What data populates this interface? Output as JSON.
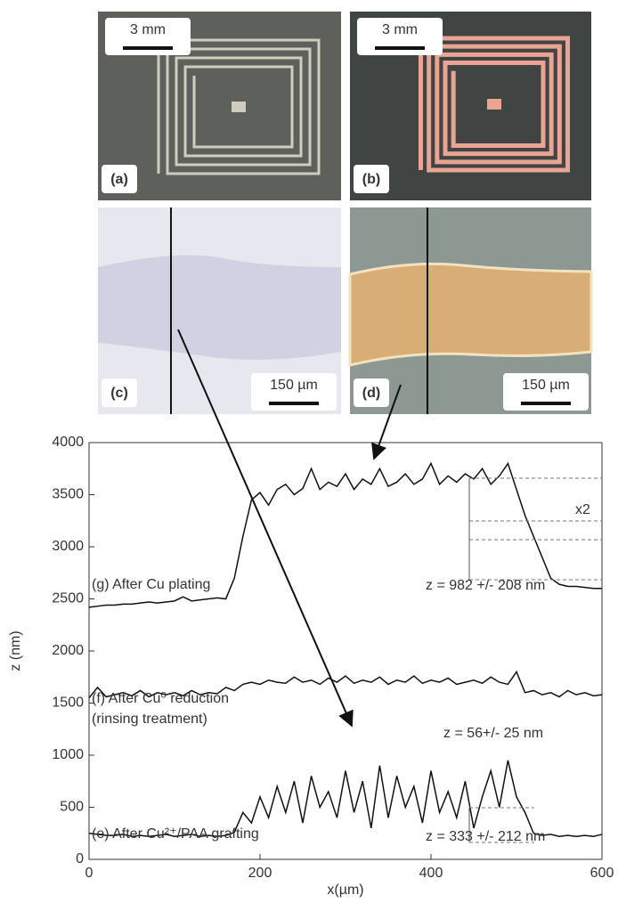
{
  "panels": [
    {
      "label": "(a)",
      "scale": "3 mm"
    },
    {
      "label": "(b)",
      "scale": "3 mm"
    },
    {
      "label": "(c)",
      "scale": "150 µm"
    },
    {
      "label": "(d)",
      "scale": "150 µm"
    }
  ],
  "chart_data": {
    "type": "line",
    "x_label": "x(µm)",
    "y_label": "z (nm)",
    "x": [
      0,
      10,
      20,
      30,
      40,
      50,
      60,
      70,
      80,
      90,
      100,
      110,
      120,
      130,
      140,
      150,
      160,
      170,
      180,
      190,
      200,
      210,
      220,
      230,
      240,
      250,
      260,
      270,
      280,
      290,
      300,
      310,
      320,
      330,
      340,
      350,
      360,
      370,
      380,
      390,
      400,
      410,
      420,
      430,
      440,
      450,
      460,
      470,
      480,
      490,
      500,
      510,
      520,
      530,
      540,
      550,
      560,
      570,
      580,
      590,
      600
    ],
    "series": [
      {
        "color": "#111111",
        "values": [
          2420,
          2430,
          2440,
          2440,
          2450,
          2450,
          2460,
          2470,
          2460,
          2470,
          2480,
          2520,
          2480,
          2490,
          2500,
          2510,
          2500,
          2700,
          3100,
          3450,
          3520,
          3400,
          3550,
          3600,
          3500,
          3560,
          3750,
          3550,
          3620,
          3580,
          3700,
          3550,
          3650,
          3600,
          3750,
          3580,
          3620,
          3700,
          3600,
          3650,
          3800,
          3600,
          3680,
          3620,
          3700,
          3650,
          3750,
          3600,
          3680,
          3800,
          3550,
          3300,
          3100,
          2900,
          2700,
          2640,
          2620,
          2620,
          2610,
          2600,
          2600
        ]
      },
      {
        "color": "#111111",
        "values": [
          1550,
          1650,
          1560,
          1580,
          1600,
          1570,
          1620,
          1560,
          1600,
          1580,
          1600,
          1570,
          1620,
          1580,
          1600,
          1590,
          1650,
          1620,
          1680,
          1700,
          1680,
          1720,
          1700,
          1690,
          1750,
          1700,
          1720,
          1680,
          1740,
          1700,
          1760,
          1690,
          1720,
          1700,
          1750,
          1680,
          1720,
          1700,
          1760,
          1690,
          1720,
          1700,
          1740,
          1680,
          1700,
          1720,
          1690,
          1750,
          1700,
          1680,
          1800,
          1600,
          1620,
          1580,
          1600,
          1560,
          1620,
          1580,
          1600,
          1570,
          1580
        ]
      },
      {
        "color": "#111111",
        "values": [
          250,
          240,
          230,
          230,
          240,
          220,
          230,
          220,
          230,
          240,
          220,
          230,
          240,
          220,
          230,
          220,
          230,
          260,
          450,
          350,
          600,
          400,
          700,
          450,
          750,
          350,
          800,
          500,
          650,
          400,
          850,
          450,
          750,
          300,
          900,
          400,
          800,
          500,
          700,
          350,
          850,
          450,
          650,
          400,
          750,
          300,
          600,
          850,
          500,
          950,
          600,
          450,
          250,
          230,
          240,
          220,
          230,
          220,
          230,
          220,
          240
        ]
      }
    ],
    "annotations": [
      "(g) After Cu plating",
      "z = 982 +/- 208 nm",
      "(f) After Cu⁰ reduction",
      "(rinsing treatment)",
      "z = 56+/- 25 nm",
      "x2",
      "(e) After Cu²⁺/PAA grafting",
      "z = 333 +/- 212 nm"
    ],
    "xlim": [
      0,
      600
    ],
    "ylim": [
      0,
      4000
    ],
    "xticks": [
      0,
      200,
      400,
      600
    ],
    "yticks": [
      0,
      500,
      1000,
      1500,
      2000,
      2500,
      3000,
      3500,
      4000
    ]
  }
}
